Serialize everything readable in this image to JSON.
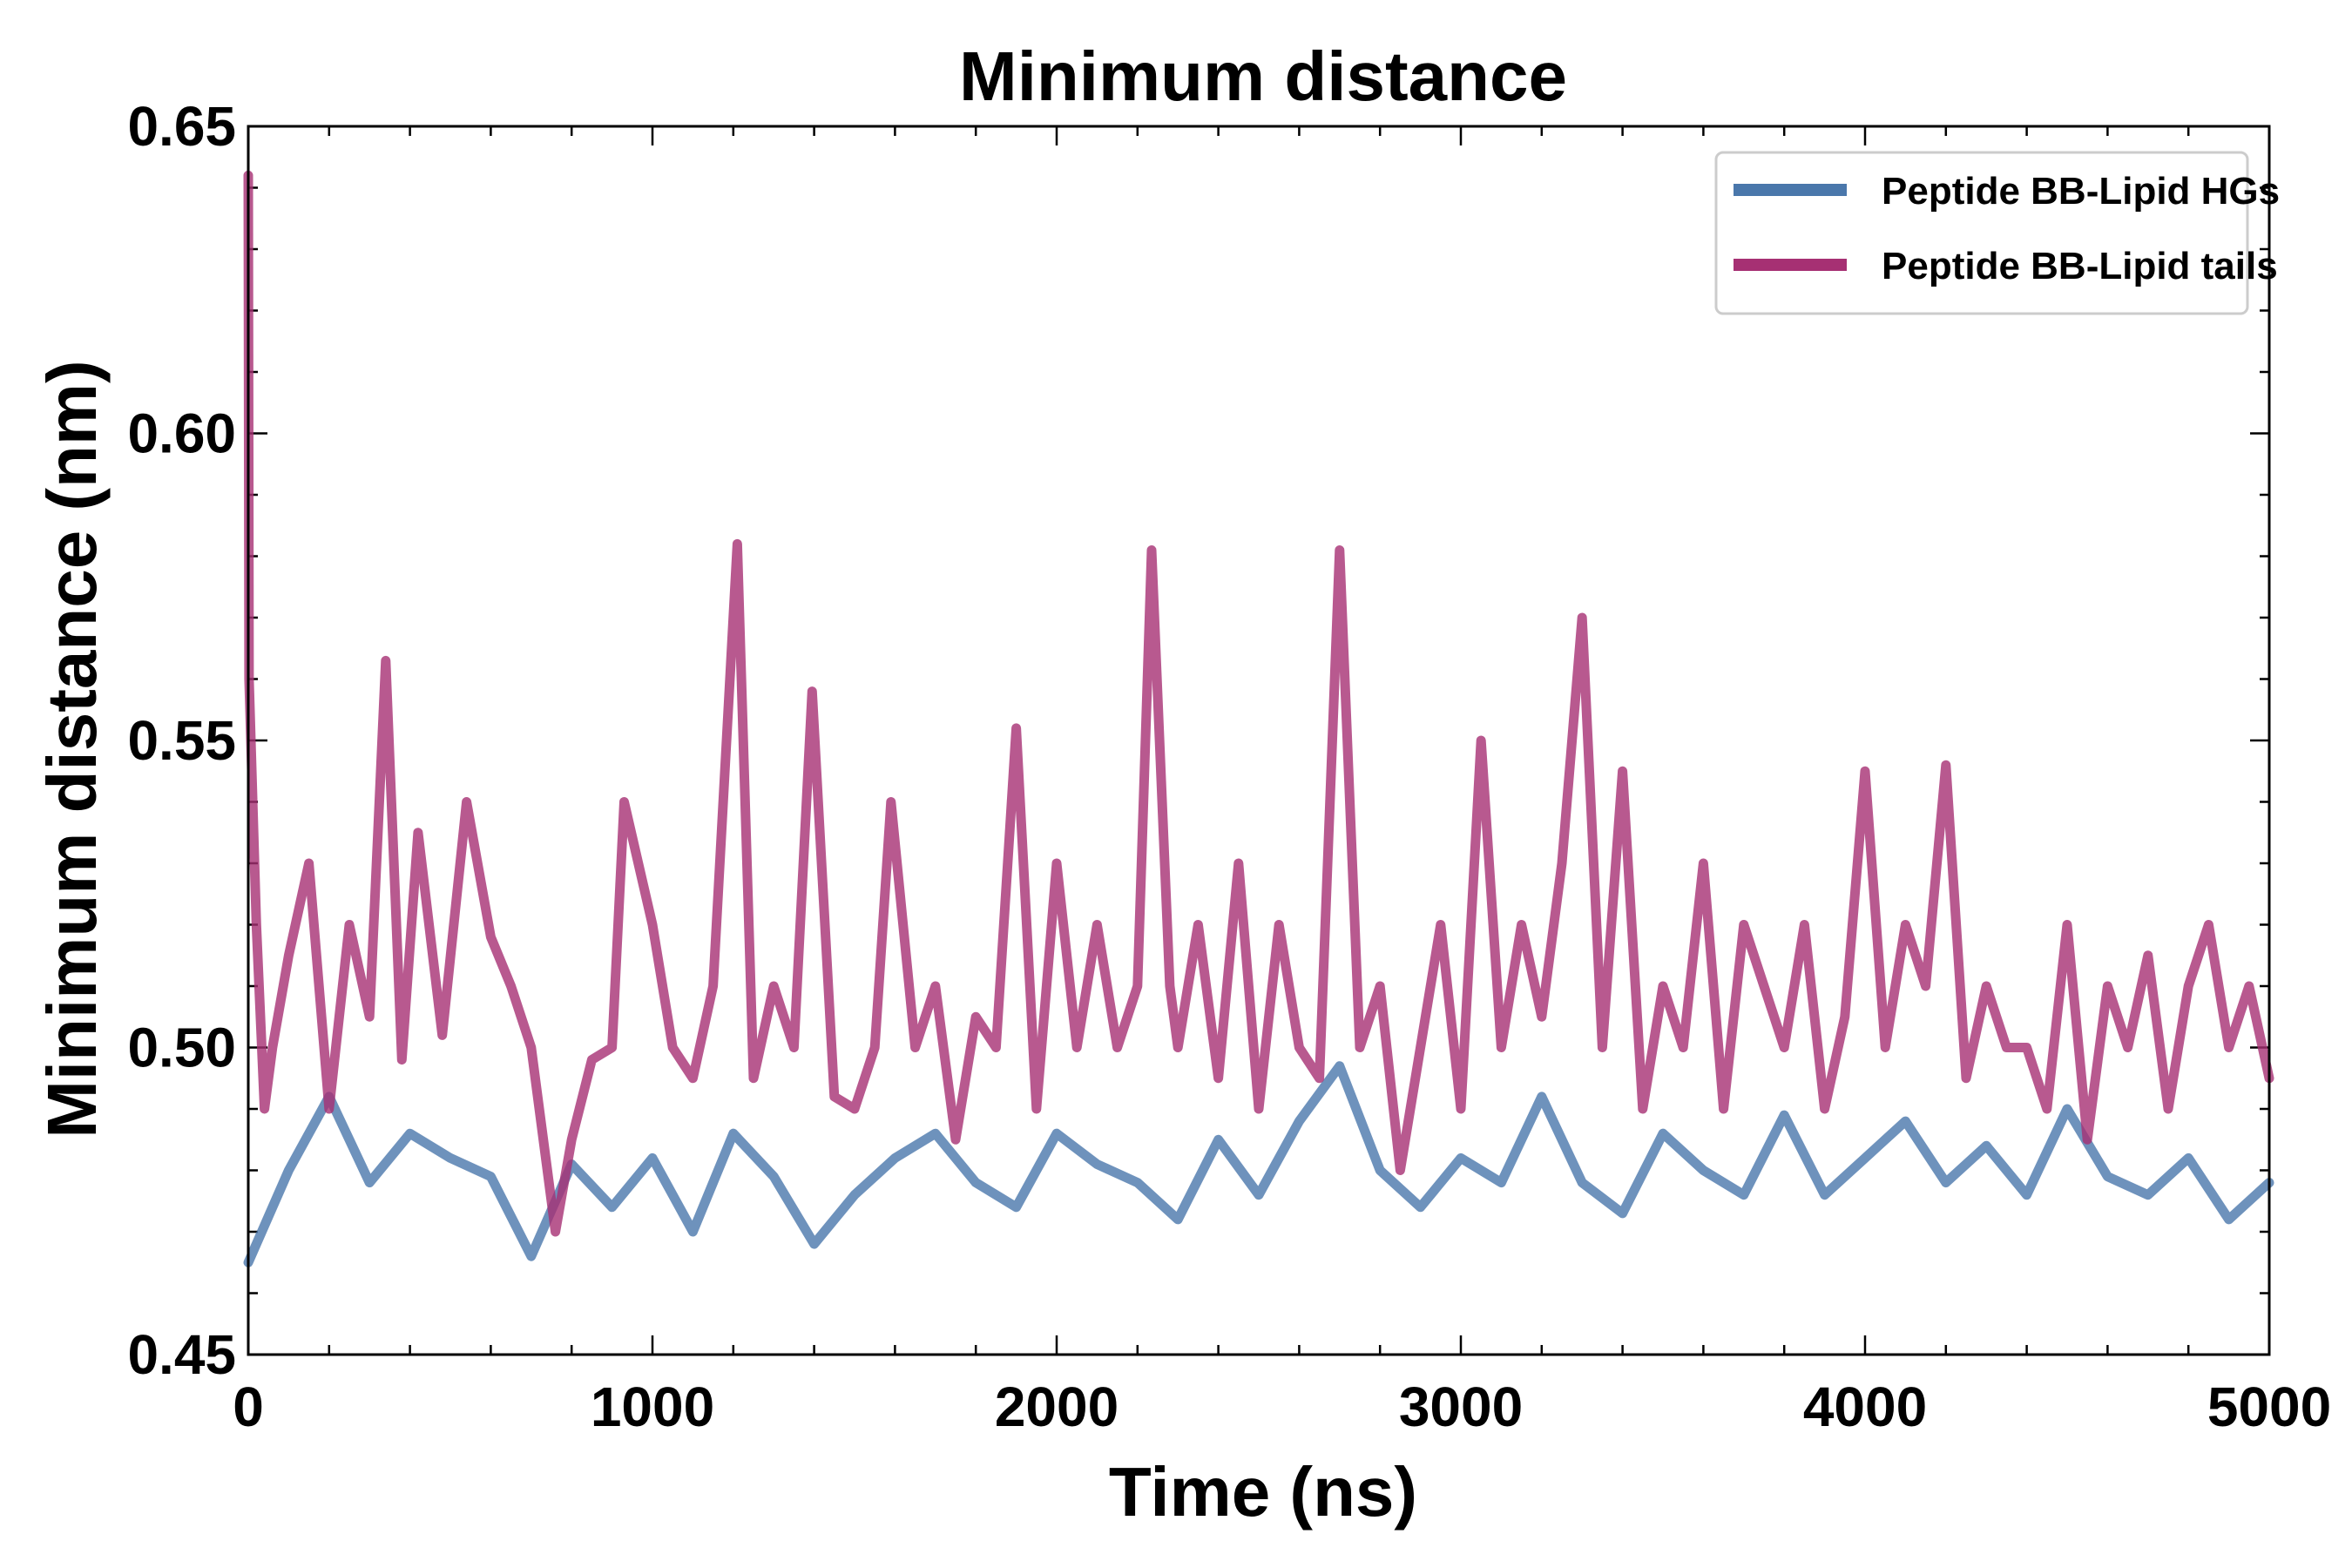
{
  "chart_data": {
    "type": "line",
    "title": "Minimum distance",
    "xlabel": "Time (ns)",
    "ylabel": "Minimum distance (nm)",
    "xlim": [
      0,
      5000
    ],
    "ylim": [
      0.45,
      0.65
    ],
    "xticks": [
      "0",
      "1000",
      "2000",
      "3000",
      "4000",
      "5000"
    ],
    "yticks": [
      "0.45",
      "0.50",
      "0.55",
      "0.60",
      "0.65"
    ],
    "grid": false,
    "legend_position": "top-right",
    "series": [
      {
        "name": "Peptide BB-Lipid HGs",
        "color": "#4a77ab",
        "x": [
          0,
          100,
          200,
          300,
          400,
          500,
          600,
          700,
          800,
          900,
          1000,
          1100,
          1200,
          1300,
          1400,
          1500,
          1600,
          1700,
          1800,
          1900,
          2000,
          2100,
          2200,
          2300,
          2400,
          2500,
          2600,
          2700,
          2800,
          2900,
          3000,
          3100,
          3200,
          3300,
          3400,
          3500,
          3600,
          3700,
          3800,
          3900,
          4000,
          4100,
          4200,
          4300,
          4400,
          4500,
          4600,
          4700,
          4800,
          4900,
          5000
        ],
        "values": [
          0.465,
          0.48,
          0.492,
          0.478,
          0.486,
          0.482,
          0.479,
          0.466,
          0.481,
          0.474,
          0.482,
          0.47,
          0.486,
          0.479,
          0.468,
          0.476,
          0.482,
          0.486,
          0.478,
          0.474,
          0.486,
          0.481,
          0.478,
          0.472,
          0.485,
          0.476,
          0.488,
          0.497,
          0.48,
          0.474,
          0.482,
          0.478,
          0.492,
          0.478,
          0.473,
          0.486,
          0.48,
          0.476,
          0.489,
          0.476,
          0.482,
          0.488,
          0.478,
          0.484,
          0.476,
          0.49,
          0.479,
          0.476,
          0.482,
          0.472,
          0.478
        ]
      },
      {
        "name": "Peptide BB-Lipid tails",
        "color": "#a63073",
        "x": [
          0,
          2,
          20,
          40,
          60,
          100,
          150,
          200,
          250,
          300,
          340,
          380,
          420,
          480,
          540,
          600,
          650,
          700,
          760,
          800,
          850,
          900,
          930,
          1000,
          1050,
          1100,
          1150,
          1210,
          1250,
          1300,
          1350,
          1395,
          1450,
          1500,
          1550,
          1590,
          1650,
          1700,
          1750,
          1800,
          1850,
          1900,
          1950,
          2000,
          2050,
          2100,
          2150,
          2200,
          2235,
          2280,
          2300,
          2350,
          2400,
          2450,
          2500,
          2550,
          2600,
          2650,
          2700,
          2750,
          2800,
          2850,
          2900,
          2950,
          3000,
          3050,
          3100,
          3150,
          3200,
          3250,
          3300,
          3350,
          3400,
          3450,
          3500,
          3550,
          3600,
          3650,
          3700,
          3750,
          3800,
          3850,
          3900,
          3950,
          4000,
          4050,
          4100,
          4150,
          4200,
          4250,
          4300,
          4350,
          4400,
          4450,
          4500,
          4550,
          4600,
          4650,
          4700,
          4750,
          4800,
          4850,
          4900,
          4950,
          5000
        ],
        "values": [
          0.642,
          0.56,
          0.52,
          0.49,
          0.5,
          0.515,
          0.53,
          0.49,
          0.52,
          0.505,
          0.563,
          0.498,
          0.535,
          0.502,
          0.54,
          0.518,
          0.51,
          0.5,
          0.47,
          0.485,
          0.498,
          0.5,
          0.54,
          0.52,
          0.5,
          0.495,
          0.51,
          0.582,
          0.495,
          0.51,
          0.5,
          0.558,
          0.492,
          0.49,
          0.5,
          0.54,
          0.5,
          0.51,
          0.485,
          0.505,
          0.5,
          0.552,
          0.49,
          0.53,
          0.5,
          0.52,
          0.5,
          0.51,
          0.581,
          0.51,
          0.5,
          0.52,
          0.495,
          0.53,
          0.49,
          0.52,
          0.5,
          0.495,
          0.581,
          0.5,
          0.51,
          0.48,
          0.5,
          0.52,
          0.49,
          0.55,
          0.5,
          0.52,
          0.505,
          0.53,
          0.57,
          0.5,
          0.545,
          0.49,
          0.51,
          0.5,
          0.53,
          0.49,
          0.52,
          0.51,
          0.5,
          0.52,
          0.49,
          0.505,
          0.545,
          0.5,
          0.52,
          0.51,
          0.546,
          0.495,
          0.51,
          0.5,
          0.5,
          0.49,
          0.52,
          0.485,
          0.51,
          0.5,
          0.515,
          0.49,
          0.51,
          0.52,
          0.5,
          0.51,
          0.495
        ]
      }
    ]
  }
}
